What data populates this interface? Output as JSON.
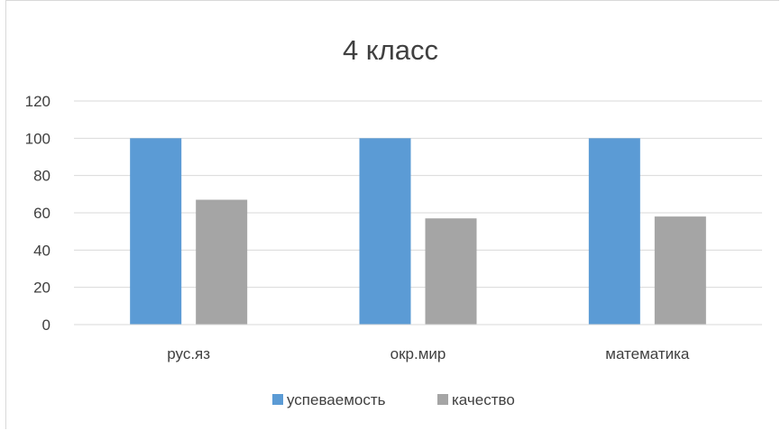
{
  "chart_data": {
    "type": "bar",
    "title": "4 класс",
    "categories": [
      "рус.яз",
      "окр.мир",
      "математика"
    ],
    "series": [
      {
        "name": "успеваемость",
        "color": "#5b9bd5",
        "values": [
          100,
          100,
          100
        ]
      },
      {
        "name": "качество",
        "color": "#a5a5a5",
        "values": [
          67,
          57,
          58
        ]
      }
    ],
    "ylim": [
      0,
      120
    ],
    "yticks": [
      0,
      20,
      40,
      60,
      80,
      100,
      120
    ],
    "grid": true,
    "legend_position": "bottom"
  }
}
